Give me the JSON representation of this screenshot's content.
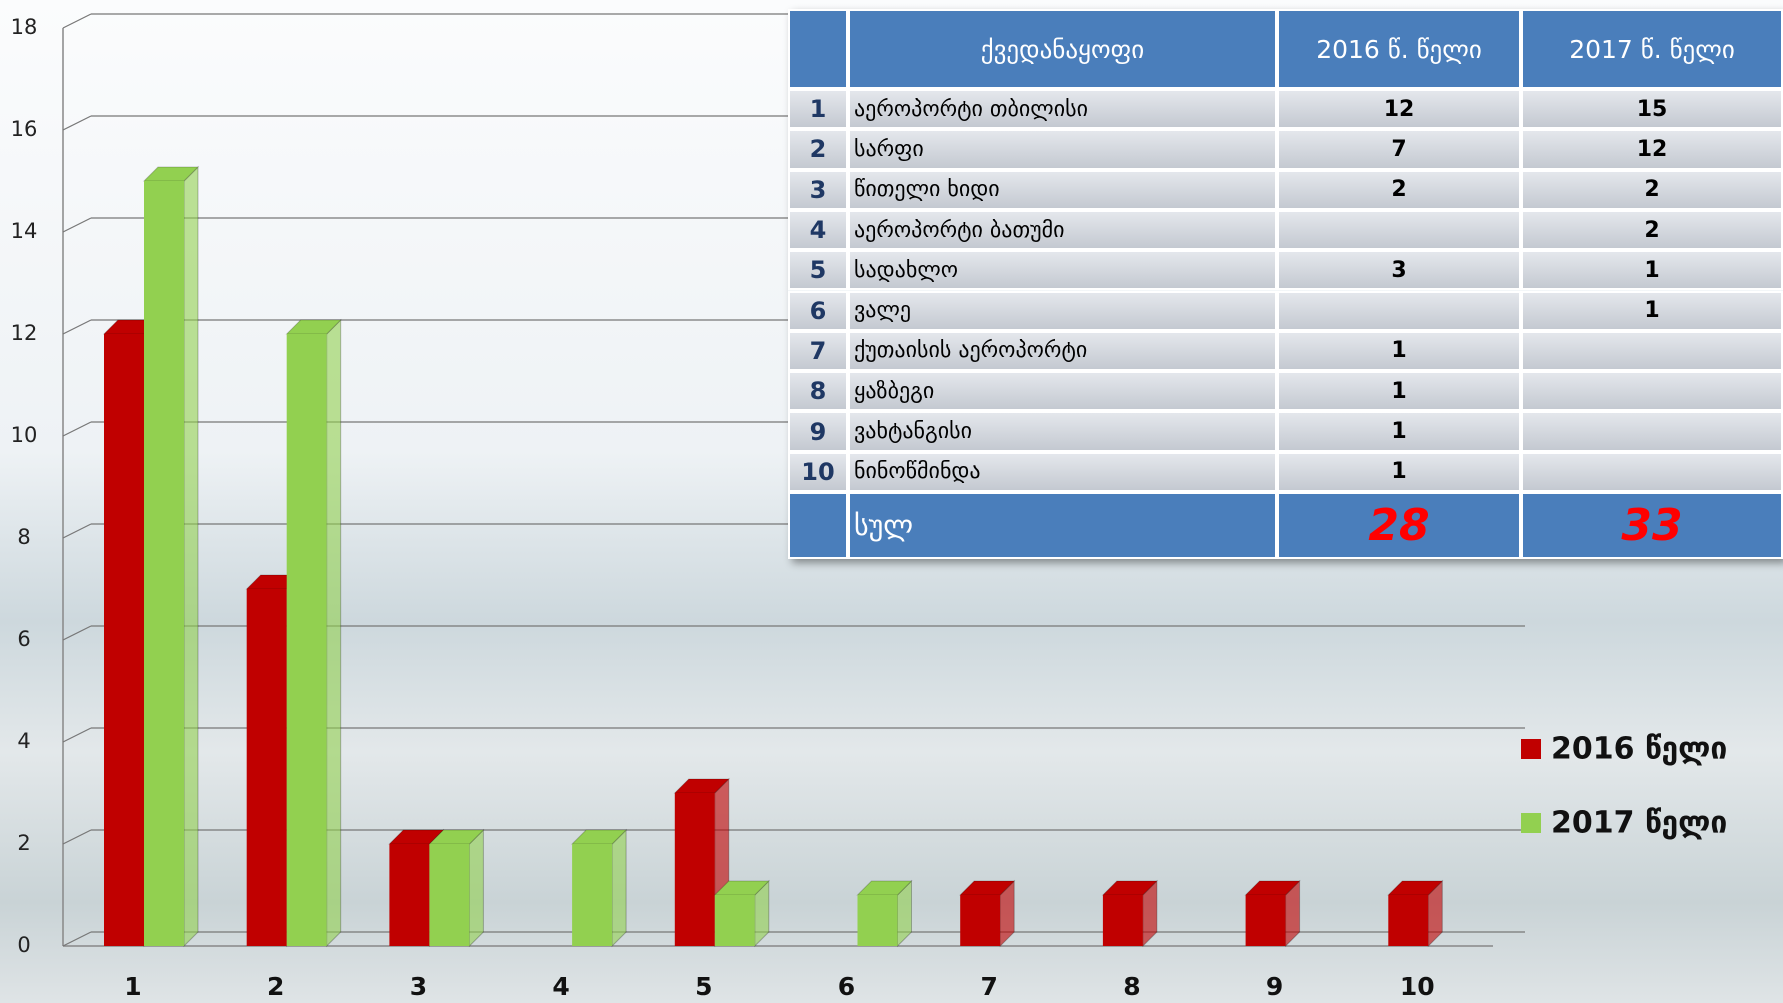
{
  "chart_data": {
    "type": "bar",
    "categories": [
      "1",
      "2",
      "3",
      "4",
      "5",
      "6",
      "7",
      "8",
      "9",
      "10"
    ],
    "series": [
      {
        "name": "2016 წელი",
        "color": "#c00000",
        "values": [
          12,
          7,
          2,
          null,
          3,
          null,
          1,
          1,
          1,
          1
        ]
      },
      {
        "name": "2017 წელი",
        "color": "#92d050",
        "values": [
          15,
          12,
          2,
          2,
          1,
          1,
          null,
          null,
          null,
          null
        ]
      }
    ],
    "ylim": [
      0,
      18
    ],
    "yticks": [
      0,
      2,
      4,
      6,
      8,
      10,
      12,
      14,
      16,
      18
    ],
    "grid": true,
    "legend": "right"
  },
  "table": {
    "header": [
      "ქვედანაყოფი",
      "2016 წ. წელი",
      "2017 წ. წელი"
    ],
    "rows": [
      [
        1,
        "აეროპორტი თბილისი",
        12,
        15
      ],
      [
        2,
        "სარფი",
        7,
        12
      ],
      [
        3,
        "წითელი ხიდი",
        2,
        2
      ],
      [
        4,
        "აეროპორტი ბათუმი",
        null,
        2
      ],
      [
        5,
        "სადახლო",
        3,
        1
      ],
      [
        6,
        "ვალე",
        null,
        1
      ],
      [
        7,
        "ქუთაისის აეროპორტი",
        1,
        null
      ],
      [
        8,
        "ყაზბეგი",
        1,
        null
      ],
      [
        9,
        "ვახტანგისი",
        1,
        null
      ],
      [
        10,
        "ნინოწმინდა",
        1,
        null
      ]
    ],
    "total": [
      "სულ",
      28,
      33
    ]
  }
}
